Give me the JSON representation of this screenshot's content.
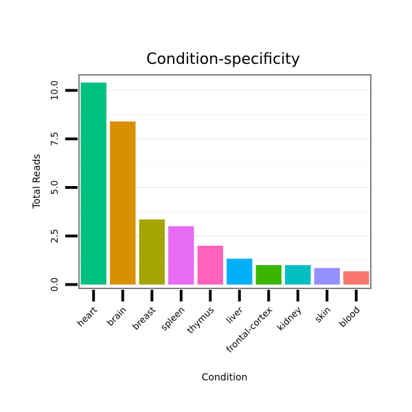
{
  "chart_data": {
    "type": "bar",
    "title": "Condition-specificity",
    "xlabel": "Condition",
    "ylabel": "Total Reads",
    "categories": [
      "heart",
      "brain",
      "breast",
      "spleen",
      "thymus",
      "liver",
      "frontal-cortex",
      "kidney",
      "skin",
      "blood"
    ],
    "values": [
      10.4,
      8.4,
      3.35,
      3.0,
      2.0,
      1.33,
      1.0,
      1.0,
      0.85,
      0.68
    ],
    "colors": [
      "#00C081",
      "#D89000",
      "#A3A500",
      "#E76BF3",
      "#FF62BC",
      "#00B0F6",
      "#39B600",
      "#00BFC4",
      "#9590FF",
      "#F8766D"
    ],
    "yticks": [
      0.0,
      2.5,
      5.0,
      7.5,
      10.0
    ],
    "ytick_labels": [
      "0.0",
      "2.5",
      "5.0",
      "7.5",
      "10.0"
    ],
    "ylim": [
      -0.2,
      10.8
    ],
    "grid": true,
    "legend": "none"
  }
}
